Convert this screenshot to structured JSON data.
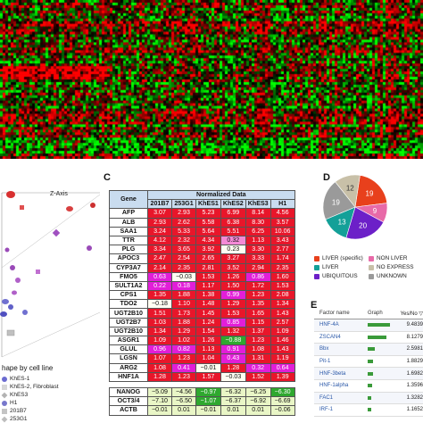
{
  "panels": {
    "C": "C",
    "D": "D",
    "E": "E"
  },
  "scatter3d": {
    "axis_label": "Z-Axis",
    "legend_title": "hape by cell line",
    "legend": [
      {
        "label": "KhES-1",
        "color": "#6b6bd0",
        "shape": "circle"
      },
      {
        "label": "KhES-2, Fibroblast",
        "color": "#d8d8d8",
        "shape": "square"
      },
      {
        "label": "KhES3",
        "color": "#b3b3b3",
        "shape": "diamond"
      },
      {
        "label": "H1",
        "color": "#7777cc",
        "shape": "circle"
      },
      {
        "label": "201B7",
        "color": "#c4c4c4",
        "shape": "square"
      },
      {
        "label": "253G1",
        "color": "#bdbdbd",
        "shape": "diamond"
      }
    ]
  },
  "tableC": {
    "gene_header": "Gene",
    "group_header": "Normalized Data",
    "columns": [
      "201B7",
      "253G1",
      "KhES1",
      "KhES2",
      "KhES3",
      "H1"
    ],
    "rows": [
      {
        "gene": "AFP",
        "values": [
          "3.07",
          "2.93",
          "5.23",
          "6.99",
          "8.14",
          "4.56"
        ],
        "colors": [
          "r",
          "r",
          "r",
          "r",
          "r",
          "r"
        ]
      },
      {
        "gene": "ALB",
        "values": [
          "2.93",
          "2.62",
          "5.58",
          "6.38",
          "8.30",
          "3.57"
        ],
        "colors": [
          "r",
          "r",
          "r",
          "r",
          "r",
          "r"
        ]
      },
      {
        "gene": "SAA1",
        "values": [
          "3.24",
          "5.33",
          "5.64",
          "5.51",
          "6.25",
          "10.06"
        ],
        "colors": [
          "r",
          "r",
          "r",
          "r",
          "r",
          "r"
        ]
      },
      {
        "gene": "TTR",
        "values": [
          "4.12",
          "2.32",
          "4.34",
          "0.32",
          "1.13",
          "3.43"
        ],
        "colors": [
          "r",
          "r",
          "r",
          "p",
          "r",
          "r"
        ]
      },
      {
        "gene": "PLG",
        "values": [
          "3.34",
          "3.65",
          "3.92",
          "0.23",
          "3.30",
          "2.77"
        ],
        "colors": [
          "r",
          "r",
          "r",
          "w",
          "r",
          "r"
        ]
      },
      {
        "gene": "APOC3",
        "values": [
          "2.47",
          "2.54",
          "2.65",
          "3.27",
          "3.33",
          "1.74"
        ],
        "colors": [
          "r",
          "r",
          "r",
          "r",
          "r",
          "r"
        ]
      },
      {
        "gene": "CYP3A7",
        "values": [
          "2.14",
          "2.35",
          "2.81",
          "3.52",
          "2.94",
          "2.35"
        ],
        "colors": [
          "r",
          "r",
          "r",
          "r",
          "r",
          "r"
        ]
      },
      {
        "gene": "FMO5",
        "values": [
          "0.63",
          "−0.03",
          "1.53",
          "1.26",
          "0.86",
          "1.60"
        ],
        "colors": [
          "m",
          "w",
          "r",
          "r",
          "m",
          "r"
        ]
      },
      {
        "gene": "SULT1A2",
        "values": [
          "0.22",
          "0.18",
          "1.17",
          "1.50",
          "1.72",
          "1.53"
        ],
        "colors": [
          "m",
          "m",
          "r",
          "r",
          "r",
          "r"
        ]
      },
      {
        "gene": "CPS1",
        "values": [
          "1.35",
          "1.88",
          "1.38",
          "0.99",
          "1.23",
          "2.08"
        ],
        "colors": [
          "r",
          "r",
          "r",
          "m",
          "r",
          "r"
        ]
      },
      {
        "gene": "TDO2",
        "values": [
          "−0.18",
          "1.10",
          "1.48",
          "1.29",
          "1.35",
          "1.34"
        ],
        "colors": [
          "w",
          "r",
          "r",
          "r",
          "r",
          "r"
        ]
      },
      {
        "gene": "UGT2B10",
        "values": [
          "1.51",
          "1.73",
          "1.45",
          "1.53",
          "1.65",
          "1.43"
        ],
        "colors": [
          "r",
          "r",
          "r",
          "r",
          "r",
          "r"
        ]
      },
      {
        "gene": "UGT2B7",
        "values": [
          "1.03",
          "1.88",
          "1.24",
          "0.85",
          "1.15",
          "2.57"
        ],
        "colors": [
          "r",
          "r",
          "r",
          "m",
          "r",
          "r"
        ]
      },
      {
        "gene": "UGT2B10",
        "values": [
          "1.34",
          "1.29",
          "1.54",
          "1.32",
          "1.37",
          "1.09"
        ],
        "colors": [
          "r",
          "r",
          "r",
          "r",
          "r",
          "r"
        ]
      },
      {
        "gene": "ASGR1",
        "values": [
          "1.09",
          "1.02",
          "1.26",
          "−0.88",
          "1.23",
          "1.46"
        ],
        "colors": [
          "r",
          "r",
          "r",
          "g",
          "r",
          "r"
        ]
      },
      {
        "gene": "GLUL",
        "values": [
          "0.96",
          "0.82",
          "1.13",
          "0.91",
          "1.08",
          "1.43"
        ],
        "colors": [
          "m",
          "m",
          "r",
          "m",
          "r",
          "r"
        ]
      },
      {
        "gene": "LGSN",
        "values": [
          "1.07",
          "1.23",
          "1.04",
          "0.43",
          "1.31",
          "1.19"
        ],
        "colors": [
          "r",
          "r",
          "r",
          "m",
          "r",
          "r"
        ]
      },
      {
        "gene": "ARG2",
        "values": [
          "1.08",
          "0.41",
          "−0.01",
          "1.28",
          "0.32",
          "0.64"
        ],
        "colors": [
          "r",
          "m",
          "w",
          "r",
          "m",
          "m"
        ]
      },
      {
        "gene": "HNF1A",
        "values": [
          "1.28",
          "1.23",
          "1.57",
          "−0.03",
          "1.52",
          "1.39"
        ],
        "colors": [
          "r",
          "r",
          "r",
          "w",
          "r",
          "r"
        ]
      }
    ],
    "rows_bottom": [
      {
        "gene": "NANOG",
        "values": [
          "−5.09",
          "−4.56",
          "−0.97",
          "−6.32",
          "−6.25",
          "−6.30"
        ],
        "colors": [
          "y",
          "y",
          "g",
          "y",
          "y",
          "g"
        ]
      },
      {
        "gene": "OCT3/4",
        "values": [
          "−7.10",
          "−6.50",
          "−1.07",
          "−6.37",
          "−6.92",
          "−6.69"
        ],
        "colors": [
          "y",
          "y",
          "g",
          "y",
          "y",
          "y"
        ]
      },
      {
        "gene": "ACTB",
        "values": [
          "−0.01",
          "0.01",
          "−0.01",
          "0.01",
          "0.01",
          "−0.06"
        ],
        "colors": [
          "y",
          "y",
          "y",
          "y",
          "y",
          "y"
        ]
      }
    ],
    "cell_colors": {
      "r": "#e8162a",
      "p": "#f48ad6",
      "m": "#e21ed8",
      "w": "#fffef2",
      "g": "#2fa82f",
      "y": "#e9f6c6"
    }
  },
  "pieD": {
    "slices": [
      {
        "label": "LIVER (specific)",
        "value": 19,
        "color": "#e8401c"
      },
      {
        "label": "NON LIVER",
        "value": 9,
        "color": "#e86aa8"
      },
      {
        "label": "UBIQUITOUS",
        "value": 20,
        "color": "#6c20c8"
      },
      {
        "label": "LIVER",
        "value": 13,
        "color": "#14a098"
      },
      {
        "label": "UNKNOWN",
        "value": 19,
        "color": "#9a9a9a"
      },
      {
        "label": "NO EXPRESS",
        "value": 12,
        "color": "#c8c0a8"
      }
    ],
    "legend": [
      {
        "label": "LIVER (specific)",
        "color": "#e8401c"
      },
      {
        "label": "NON LIVER",
        "color": "#e86aa8"
      },
      {
        "label": "LIVER",
        "color": "#14a098"
      },
      {
        "label": "NO EXPRESS",
        "color": "#c8c0a8"
      },
      {
        "label": "UBIQUITOUS",
        "color": "#6c20c8"
      },
      {
        "label": "UNKNOWN",
        "color": "#9a9a9a"
      }
    ]
  },
  "tableE": {
    "headers": [
      "Factor name",
      "Graph",
      "Yes/No ▽"
    ],
    "rows": [
      {
        "name": "HNF-4A",
        "value": "9.4839",
        "bar": 0.9
      },
      {
        "name": "ZSCAN4",
        "value": "8.1279",
        "bar": 0.75
      },
      {
        "name": "Bbx",
        "value": "2.5981",
        "bar": 0.3
      },
      {
        "name": "Pit-1",
        "value": "1.8829",
        "bar": 0.22
      },
      {
        "name": "HNF-3beta",
        "value": "1.6982",
        "bar": 0.2
      },
      {
        "name": "HNF-1alpha",
        "value": "1.3596",
        "bar": 0.17
      },
      {
        "name": "FAC1",
        "value": "1.3282",
        "bar": 0.16
      },
      {
        "name": "IRF-1",
        "value": "1.1652",
        "bar": 0.15
      }
    ]
  }
}
